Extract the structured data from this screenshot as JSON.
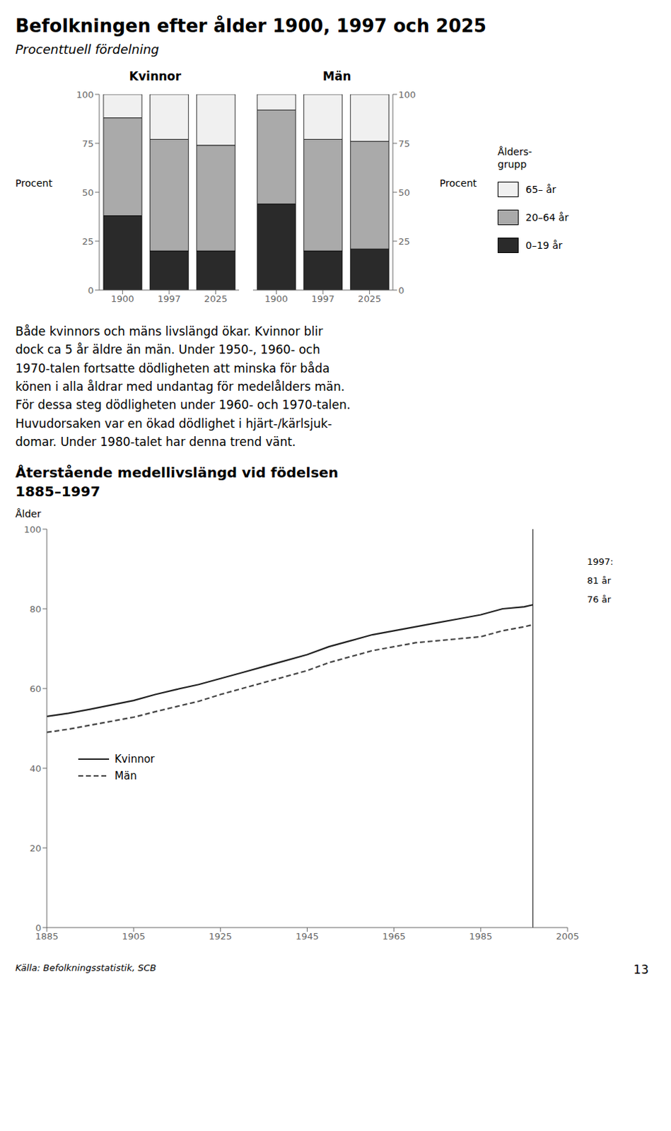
{
  "title": "Befolkningen efter ålder 1900, 1997 och 2025",
  "subtitle": "Procenttuell fördelning",
  "text": [
    "Både kvinnors och mäns livslängd ökar. Kvinnor blir",
    "dock ca 5 år äldre än män. Under 1950-, 1960- och",
    "1970-talen fortsatte dödligheten att minska för båda",
    "könen i alla åldrar med undantag för medelålders män.",
    "För dessa steg dödligheten under 1960- och 1970-talen.",
    "Huvudorsaken var en ökad dödlighet i hjärt-/kärlsjuk-",
    "domar. Under 1980-talet har denna trend vänt."
  ],
  "source": "Källa: Befolkningsstatistik, SCB",
  "page": "13",
  "chart_data": [
    {
      "type": "bar",
      "stacked": true,
      "title": "Kvinnor",
      "y_label": "Procent",
      "categories": [
        "1900",
        "1997",
        "2025"
      ],
      "series": [
        {
          "name": "0–19 år",
          "color": "#2a2a2a",
          "values": [
            38,
            20,
            20
          ]
        },
        {
          "name": "20–64 år",
          "color": "#aaaaaa",
          "values": [
            50,
            57,
            54
          ]
        },
        {
          "name": "65– år",
          "color": "#f0f0f0",
          "values": [
            12,
            23,
            26
          ]
        }
      ],
      "ylim": [
        0,
        100
      ],
      "yticks": [
        0,
        25,
        50,
        75,
        100
      ],
      "grid": false,
      "legend": "right",
      "legend_title": "Ålders-\ngrupp"
    },
    {
      "type": "bar",
      "stacked": true,
      "title": "Män",
      "y_label": "Procent",
      "categories": [
        "1900",
        "1997",
        "2025"
      ],
      "series": [
        {
          "name": "0–19 år",
          "color": "#2a2a2a",
          "values": [
            44,
            20,
            21
          ]
        },
        {
          "name": "20–64 år",
          "color": "#aaaaaa",
          "values": [
            48,
            57,
            55
          ]
        },
        {
          "name": "65– år",
          "color": "#f0f0f0",
          "values": [
            8,
            23,
            24
          ]
        }
      ],
      "ylim": [
        0,
        100
      ],
      "yticks": [
        0,
        25,
        50,
        75,
        100
      ],
      "grid": false
    },
    {
      "type": "line",
      "title": "Återstående medellivslängd vid födelsen\n1885–1997",
      "y_label": "Ålder",
      "x": [
        1885,
        1890,
        1895,
        1900,
        1905,
        1910,
        1915,
        1920,
        1925,
        1930,
        1935,
        1940,
        1945,
        1950,
        1955,
        1960,
        1965,
        1970,
        1975,
        1980,
        1985,
        1990,
        1995,
        1997
      ],
      "series": [
        {
          "name": "Kvinnor",
          "color": "#222222",
          "line_style": "solid",
          "values": [
            53.0,
            53.8,
            54.8,
            55.9,
            57.0,
            58.5,
            59.8,
            61.0,
            62.5,
            64.0,
            65.5,
            67.0,
            68.5,
            70.5,
            72.0,
            73.5,
            74.5,
            75.5,
            76.5,
            77.5,
            78.5,
            80.0,
            80.5,
            81.0
          ]
        },
        {
          "name": "Män",
          "color": "#444444",
          "line_style": "dashed",
          "values": [
            49.0,
            49.8,
            50.8,
            51.8,
            52.8,
            54.2,
            55.5,
            56.8,
            58.5,
            60.0,
            61.5,
            63.0,
            64.5,
            66.5,
            68.0,
            69.5,
            70.5,
            71.5,
            72.0,
            72.5,
            73.0,
            74.5,
            75.5,
            76.0
          ]
        }
      ],
      "xlim": [
        1885,
        2005
      ],
      "xticks": [
        1885,
        1905,
        1925,
        1945,
        1965,
        1985,
        2005
      ],
      "ylim": [
        0,
        100
      ],
      "yticks": [
        0,
        20,
        40,
        60,
        80,
        100
      ],
      "grid": false,
      "legend": "left",
      "vline": 1997,
      "annotations": [
        "1997:",
        "81 år",
        "76 år"
      ]
    }
  ]
}
